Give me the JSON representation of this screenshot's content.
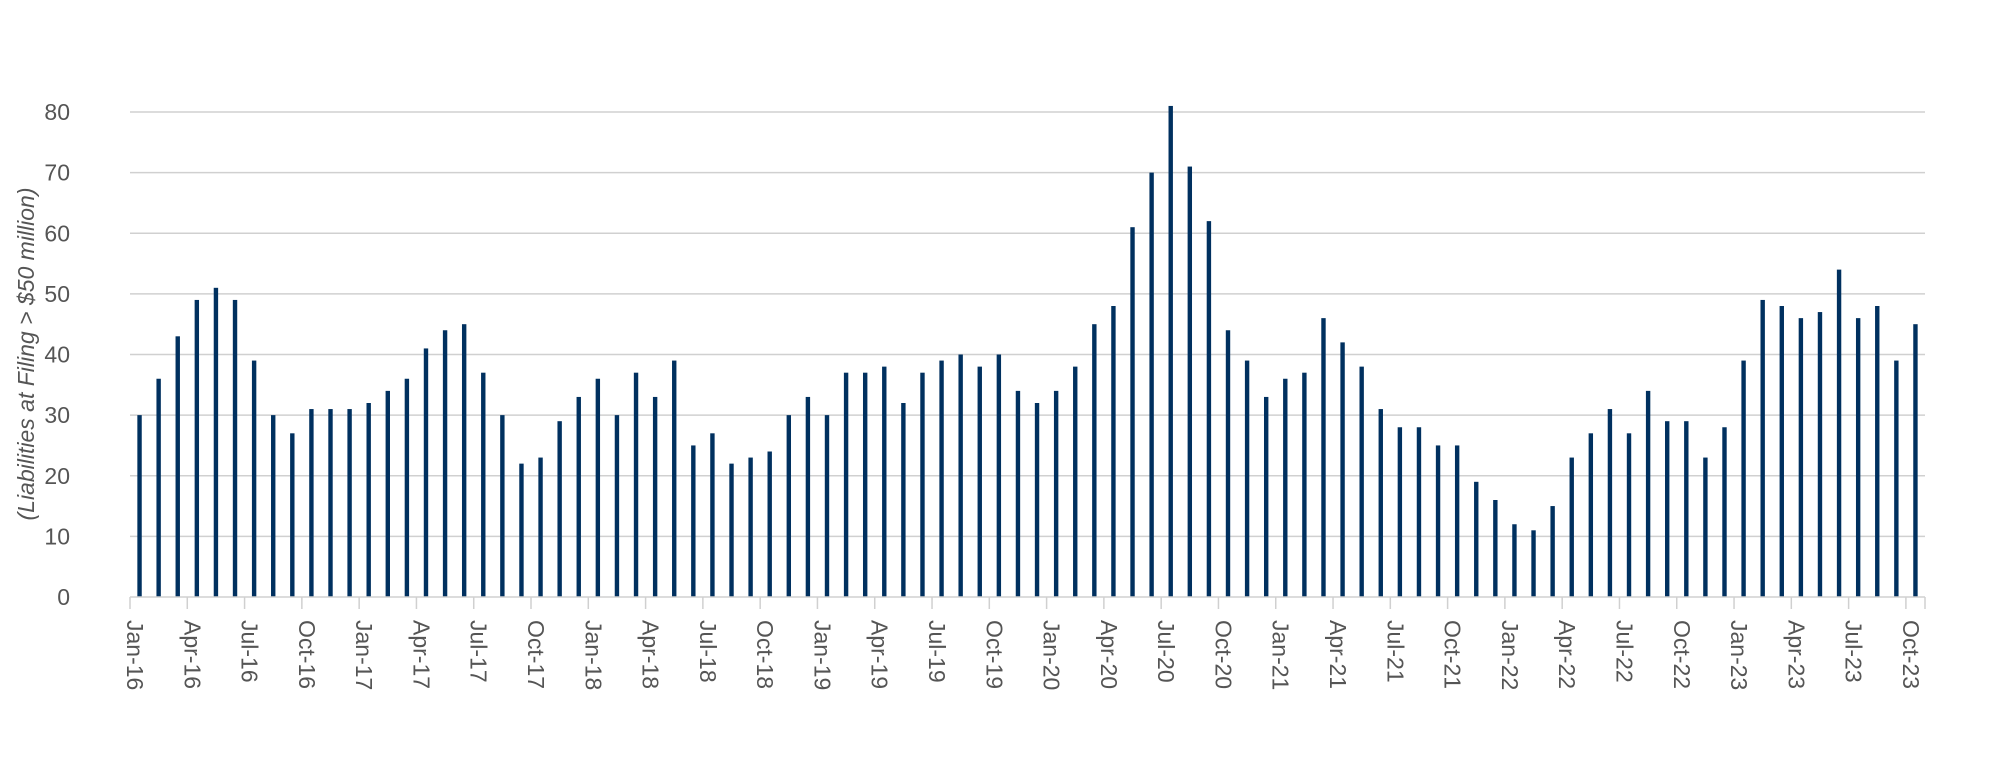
{
  "chart_data": {
    "type": "bar",
    "title": "",
    "xlabel": "",
    "ylabel": "(Liabilities at Filing > $50 million)",
    "ylim": [
      0,
      80
    ],
    "yticks": [
      0,
      10,
      20,
      30,
      40,
      50,
      60,
      70,
      80
    ],
    "grid": true,
    "legend": "none",
    "bar_color": "#00305f",
    "grid_color": "#d0d0d0",
    "categories": [
      "Jan-16",
      "Feb-16",
      "Mar-16",
      "Apr-16",
      "May-16",
      "Jun-16",
      "Jul-16",
      "Aug-16",
      "Sep-16",
      "Oct-16",
      "Nov-16",
      "Dec-16",
      "Jan-17",
      "Feb-17",
      "Mar-17",
      "Apr-17",
      "May-17",
      "Jun-17",
      "Jul-17",
      "Aug-17",
      "Sep-17",
      "Oct-17",
      "Nov-17",
      "Dec-17",
      "Jan-18",
      "Feb-18",
      "Mar-18",
      "Apr-18",
      "May-18",
      "Jun-18",
      "Jul-18",
      "Aug-18",
      "Sep-18",
      "Oct-18",
      "Nov-18",
      "Dec-18",
      "Jan-19",
      "Feb-19",
      "Mar-19",
      "Apr-19",
      "May-19",
      "Jun-19",
      "Jul-19",
      "Aug-19",
      "Sep-19",
      "Oct-19",
      "Nov-19",
      "Dec-19",
      "Jan-20",
      "Feb-20",
      "Mar-20",
      "Apr-20",
      "May-20",
      "Jun-20",
      "Jul-20",
      "Aug-20",
      "Sep-20",
      "Oct-20",
      "Nov-20",
      "Dec-20",
      "Jan-21",
      "Feb-21",
      "Mar-21",
      "Apr-21",
      "May-21",
      "Jun-21",
      "Jul-21",
      "Aug-21",
      "Sep-21",
      "Oct-21",
      "Nov-21",
      "Dec-21",
      "Jan-22",
      "Feb-22",
      "Mar-22",
      "Apr-22",
      "May-22",
      "Jun-22",
      "Jul-22",
      "Aug-22",
      "Sep-22",
      "Oct-22",
      "Nov-22",
      "Dec-22",
      "Jan-23",
      "Feb-23",
      "Mar-23",
      "Apr-23",
      "May-23",
      "Jun-23",
      "Jul-23",
      "Aug-23",
      "Sep-23",
      "Oct-23"
    ],
    "values": [
      30,
      36,
      43,
      49,
      51,
      49,
      39,
      30,
      27,
      31,
      31,
      31,
      32,
      34,
      36,
      41,
      44,
      45,
      37,
      30,
      22,
      23,
      29,
      33,
      36,
      30,
      37,
      33,
      39,
      25,
      27,
      22,
      23,
      24,
      30,
      33,
      30,
      37,
      37,
      38,
      32,
      37,
      39,
      40,
      38,
      40,
      34,
      32,
      34,
      38,
      45,
      48,
      61,
      70,
      81,
      71,
      62,
      44,
      39,
      33,
      36,
      37,
      46,
      42,
      38,
      31,
      28,
      28,
      25,
      25,
      19,
      16,
      12,
      11,
      15,
      23,
      27,
      31,
      27,
      34,
      29,
      29,
      23,
      28,
      39,
      49,
      48,
      46,
      47,
      54,
      46,
      48,
      39,
      45
    ],
    "xtick_labels": [
      "Jan-16",
      "Apr-16",
      "Jul-16",
      "Oct-16",
      "Jan-17",
      "Apr-17",
      "Jul-17",
      "Oct-17",
      "Jan-18",
      "Apr-18",
      "Jul-18",
      "Oct-18",
      "Jan-19",
      "Apr-19",
      "Jul-19",
      "Oct-19",
      "Jan-20",
      "Apr-20",
      "Jul-20",
      "Oct-20",
      "Jan-21",
      "Apr-21",
      "Jul-21",
      "Oct-21",
      "Jan-22",
      "Apr-22",
      "Jul-22",
      "Oct-22",
      "Jan-23",
      "Apr-23",
      "Jul-23",
      "Oct-23"
    ]
  }
}
